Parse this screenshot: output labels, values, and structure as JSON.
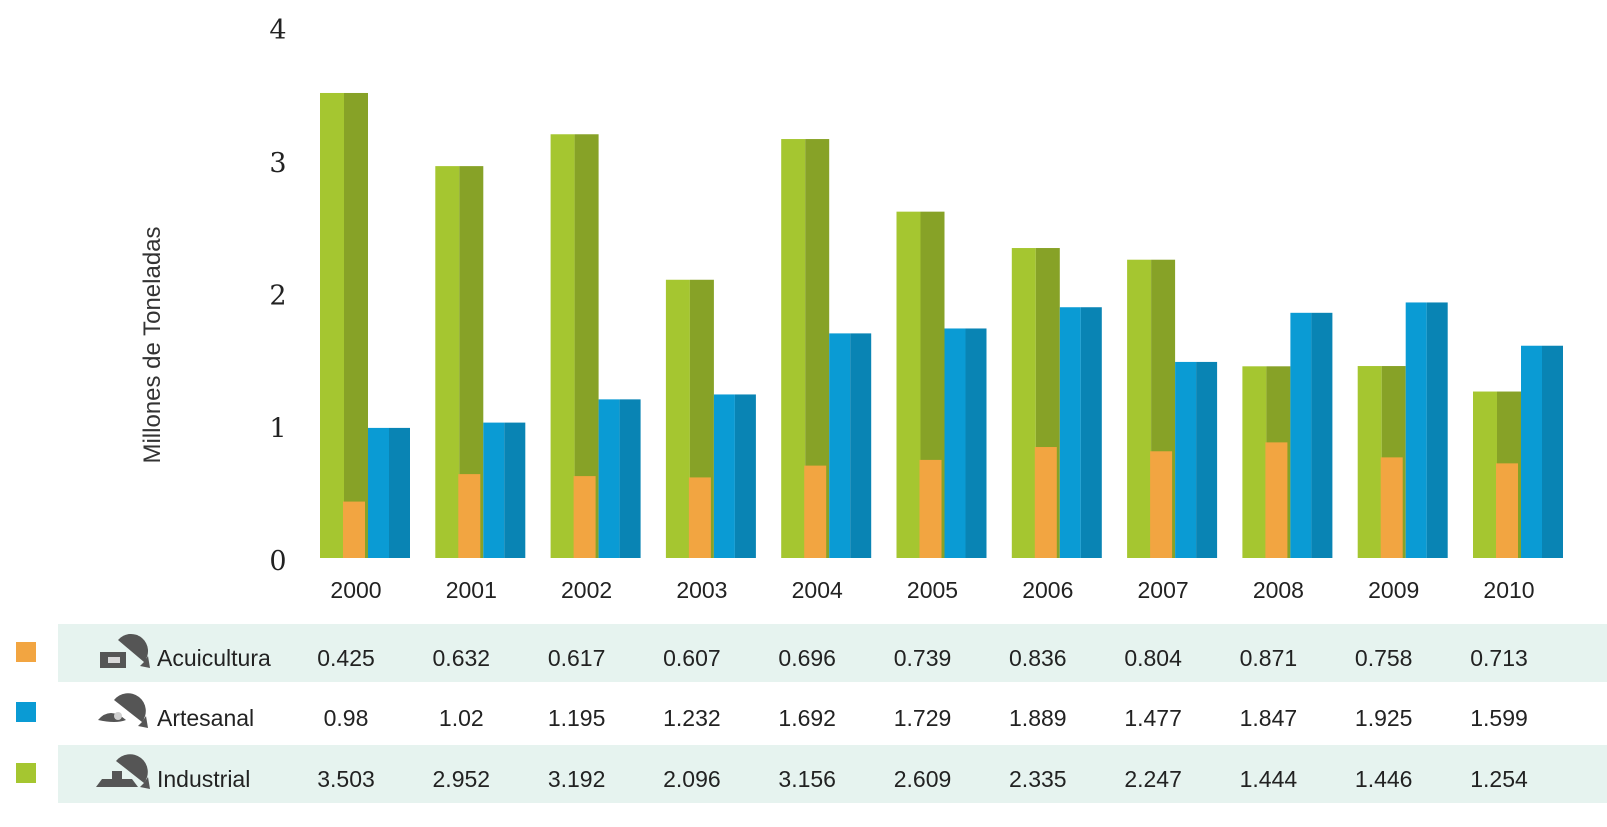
{
  "chart_data": {
    "type": "bar",
    "ylabel": "Millones de Toneladas",
    "ylim": [
      0,
      4
    ],
    "yticks": [
      "0",
      "1",
      "2",
      "3",
      "4"
    ],
    "categories": [
      "2000",
      "2001",
      "2002",
      "2003",
      "2004",
      "2005",
      "2006",
      "2007",
      "2008",
      "2009",
      "2010"
    ],
    "series": [
      {
        "name": "Acuicultura",
        "color": "#f2a541",
        "icon": "aquaculture-icon",
        "values": [
          0.425,
          0.632,
          0.617,
          0.607,
          0.696,
          0.739,
          0.836,
          0.804,
          0.871,
          0.758,
          0.713
        ],
        "labels": [
          "0.425",
          "0.632",
          "0.617",
          "0.607",
          "0.696",
          "0.739",
          "0.836",
          "0.804",
          "0.871",
          "0.758",
          "0.713"
        ]
      },
      {
        "name": "Artesanal",
        "color": "#0a9bd4",
        "icon": "artisanal-fishing-icon",
        "values": [
          0.98,
          1.02,
          1.195,
          1.232,
          1.692,
          1.729,
          1.889,
          1.477,
          1.847,
          1.925,
          1.599
        ],
        "labels": [
          "0.98",
          "1.02",
          "1.195",
          "1.232",
          "1.692",
          "1.729",
          "1.889",
          "1.477",
          "1.847",
          "1.925",
          "1.599"
        ]
      },
      {
        "name": "Industrial",
        "color": "#a5c630",
        "icon": "industrial-fishing-icon",
        "values": [
          3.503,
          2.952,
          3.192,
          2.096,
          3.156,
          2.609,
          2.335,
          2.247,
          1.444,
          1.446,
          1.254
        ],
        "labels": [
          "3.503",
          "2.952",
          "3.192",
          "2.096",
          "3.156",
          "2.609",
          "2.335",
          "2.247",
          "1.444",
          "1.446",
          "1.254"
        ]
      }
    ],
    "legend_placement": "bottom-left (data table)"
  }
}
